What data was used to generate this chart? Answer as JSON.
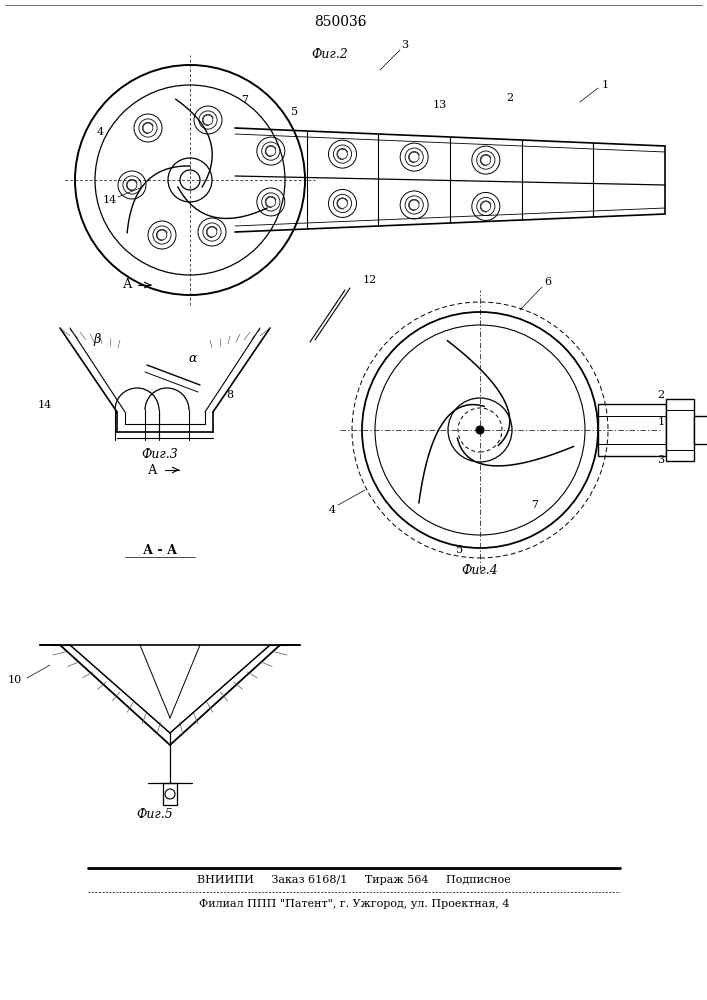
{
  "patent_number": "850036",
  "fig2_caption": "Фиг.2",
  "fig3_caption": "Фиг.3",
  "fig4_caption": "Фиг.4",
  "fig5_caption": "Фиг.5",
  "footer_line1": "ВНИИПИ     Заказ 6168/1     Тираж 564     Подписное",
  "footer_line2": "Филиал ППП \"Патент\", г. Ужгород, ул. Проектная, 4",
  "bg_color": "#ffffff",
  "line_color": "#000000"
}
